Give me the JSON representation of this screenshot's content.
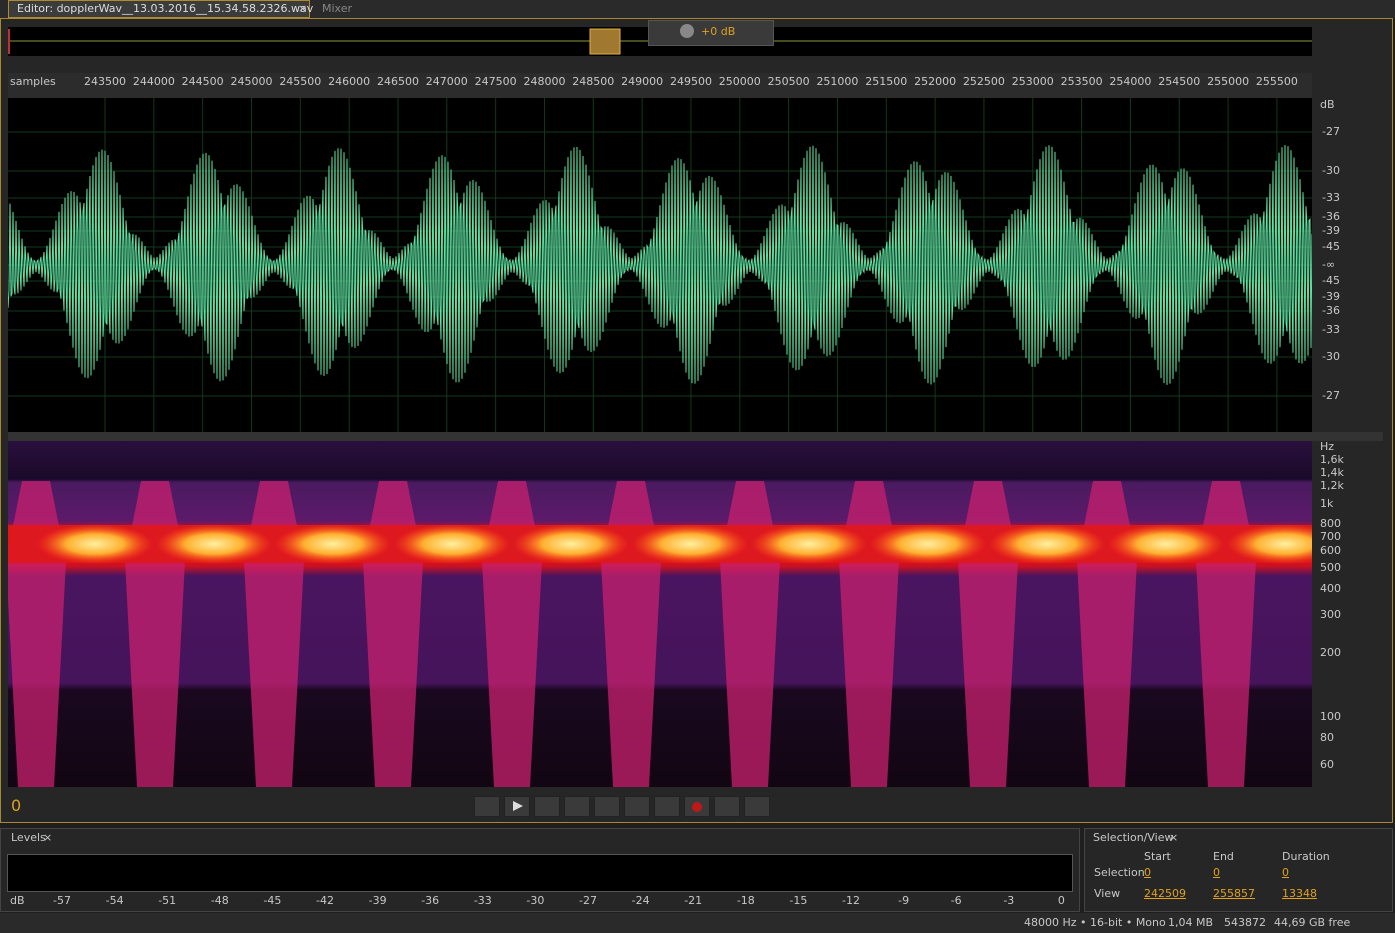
{
  "tabs": {
    "editor": "Editor: dopplerWav__13.03.2016__15.34.58.2326.wav",
    "close": "×",
    "mixer": "Mixer"
  },
  "volume": "+0 dB",
  "ruler": {
    "unit": "samples",
    "labels": [
      243500,
      244000,
      244500,
      245000,
      245500,
      246000,
      246500,
      247000,
      247500,
      248000,
      248500,
      249000,
      249500,
      250000,
      250500,
      251000,
      251500,
      252000,
      252500,
      253000,
      253500,
      254000,
      254500,
      255000,
      255500
    ]
  },
  "db_scale": {
    "unit": "dB",
    "labels": [
      -27,
      -30,
      -33,
      -36,
      -39,
      -45,
      "-∞",
      -45,
      -39,
      -36,
      -33,
      -30,
      -27
    ]
  },
  "hz_scale": {
    "unit": "Hz",
    "labels": [
      "1,6k",
      "1,4k",
      "1,2k",
      "1k",
      800,
      700,
      600,
      500,
      400,
      300,
      200,
      100,
      80,
      60
    ]
  },
  "time": 0,
  "levels": {
    "title": "Levels",
    "close": "×",
    "scale": [
      "dB",
      -57,
      -54,
      -51,
      -48,
      -45,
      -42,
      -39,
      -36,
      -33,
      -30,
      -27,
      -24,
      -21,
      -18,
      -15,
      -12,
      -9,
      -6,
      -3,
      0
    ]
  },
  "selection_view": {
    "title": "Selection/View",
    "close": "×",
    "columns": [
      "Start",
      "End",
      "Duration"
    ],
    "rows": [
      {
        "label": "Selection",
        "values": [
          0,
          0,
          0
        ]
      },
      {
        "label": "View",
        "values": [
          242509,
          255857,
          13348
        ]
      }
    ]
  },
  "status": [
    "48000 Hz • 16-bit • Mono",
    "1,04 MB",
    543872,
    "44,69 GB free"
  ]
}
